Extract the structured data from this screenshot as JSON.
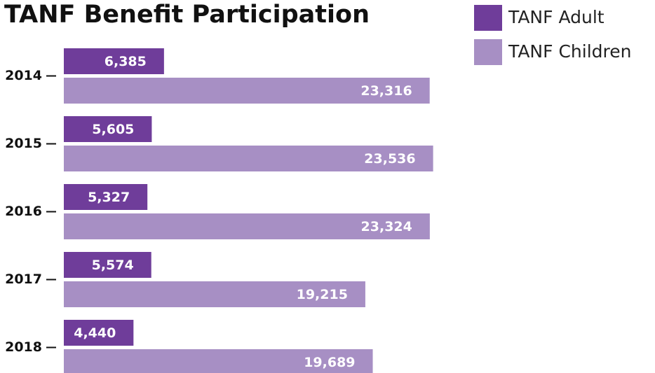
{
  "chart_data": {
    "type": "bar",
    "orientation": "horizontal",
    "title": "TANF Benefit Participation",
    "categories": [
      "2014",
      "2015",
      "2016",
      "2017",
      "2018"
    ],
    "series": [
      {
        "name": "TANF Adult",
        "color": "#6f3d9a",
        "values": [
          6385,
          5605,
          5327,
          5574,
          4440
        ],
        "value_labels": [
          "6,385",
          "5,605",
          "5,327",
          "5,574",
          "4,440"
        ]
      },
      {
        "name": "TANF Children",
        "color": "#a78fc4",
        "values": [
          23316,
          23536,
          23324,
          19215,
          19689
        ],
        "value_labels": [
          "23,316",
          "23,536",
          "23,324",
          "19,215",
          "19,689"
        ]
      }
    ],
    "xlim": [
      0,
      24000
    ],
    "legend": "top-right"
  }
}
